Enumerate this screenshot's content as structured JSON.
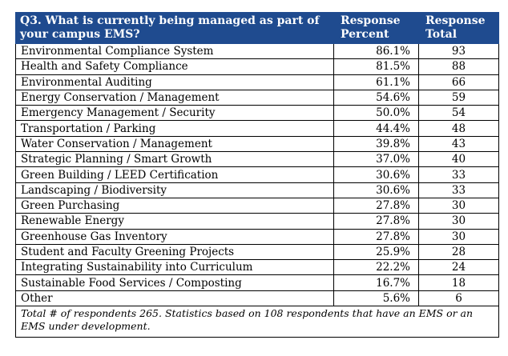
{
  "header": {
    "question": "Q3. What is currently being managed as part of your campus EMS?",
    "percent_label": "Response Percent",
    "total_label": "Response Total"
  },
  "rows": [
    {
      "item": "Environmental Compliance System",
      "percent": "86.1%",
      "total": "93"
    },
    {
      "item": "Health and Safety Compliance",
      "percent": "81.5%",
      "total": "88"
    },
    {
      "item": "Environmental Auditing",
      "percent": "61.1%",
      "total": "66"
    },
    {
      "item": "Energy Conservation / Management",
      "percent": "54.6%",
      "total": "59"
    },
    {
      "item": "Emergency Management / Security",
      "percent": "50.0%",
      "total": "54"
    },
    {
      "item": "Transportation / Parking",
      "percent": "44.4%",
      "total": "48"
    },
    {
      "item": "Water Conservation / Management",
      "percent": "39.8%",
      "total": "43"
    },
    {
      "item": "Strategic Planning / Smart Growth",
      "percent": "37.0%",
      "total": "40"
    },
    {
      "item": "Green Building / LEED Certification",
      "percent": "30.6%",
      "total": "33"
    },
    {
      "item": "Landscaping / Biodiversity",
      "percent": "30.6%",
      "total": "33"
    },
    {
      "item": "Green Purchasing",
      "percent": "27.8%",
      "total": "30"
    },
    {
      "item": "Renewable Energy",
      "percent": "27.8%",
      "total": "30"
    },
    {
      "item": "Greenhouse Gas Inventory",
      "percent": "27.8%",
      "total": "30"
    },
    {
      "item": "Student and Faculty Greening Projects",
      "percent": "25.9%",
      "total": "28"
    },
    {
      "item": "Integrating Sustainability into Curriculum",
      "percent": "22.2%",
      "total": "24"
    },
    {
      "item": "Sustainable Food Services / Composting",
      "percent": "16.7%",
      "total": "18"
    },
    {
      "item": "Other",
      "percent": "5.6%",
      "total": "6"
    }
  ],
  "footnote": "Total # of respondents 265.  Statistics based on 108 respondents that have an EMS or an EMS under development.",
  "colors": {
    "header_bg": "#1f4b8f",
    "header_text": "#ffffff"
  }
}
